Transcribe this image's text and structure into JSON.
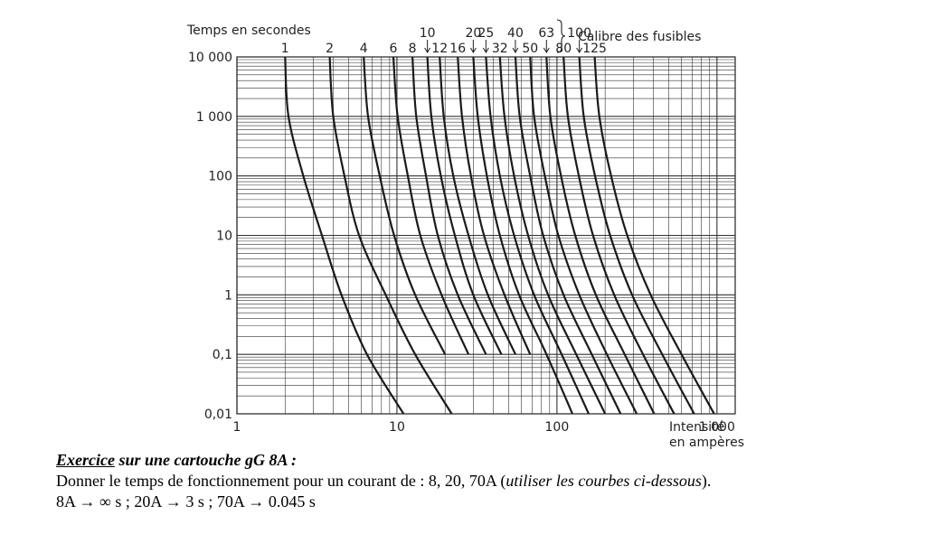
{
  "chart_data": {
    "type": "line",
    "ylabel": "Temps en secondes",
    "xlabel": "Intensité en ampères",
    "xlabel_lines": [
      "Intensité",
      "en ampères"
    ],
    "xscale": "log",
    "yscale": "log",
    "xlim": [
      1,
      1300
    ],
    "ylim": [
      0.01,
      10000
    ],
    "grid": true,
    "x_ticks": [
      {
        "value": 1,
        "label": "1"
      },
      {
        "value": 10,
        "label": "10"
      },
      {
        "value": 100,
        "label": "100"
      },
      {
        "value": 1000,
        "label": "1 000"
      }
    ],
    "y_ticks": [
      {
        "value": 10000,
        "label": "10 000"
      },
      {
        "value": 1000,
        "label": "1 000"
      },
      {
        "value": 100,
        "label": "100"
      },
      {
        "value": 10,
        "label": "10"
      },
      {
        "value": 1,
        "label": "1"
      },
      {
        "value": 0.1,
        "label": "0,1"
      },
      {
        "value": 0.01,
        "label": "0,01"
      }
    ],
    "legend_title": "Calibre des fusibles",
    "fuse_labels": [
      {
        "rating": 1,
        "row": "bottom",
        "label": "1"
      },
      {
        "rating": 2,
        "row": "bottom",
        "label": "2"
      },
      {
        "rating": 4,
        "row": "bottom",
        "label": "4"
      },
      {
        "rating": 6,
        "row": "bottom",
        "label": "6"
      },
      {
        "rating": 8,
        "row": "bottom",
        "label": "8"
      },
      {
        "rating": 10,
        "row": "top",
        "label": "10"
      },
      {
        "rating": 12,
        "row": "bottom",
        "label": "12"
      },
      {
        "rating": 16,
        "row": "bottom",
        "label": "16"
      },
      {
        "rating": 20,
        "row": "top",
        "label": "20"
      },
      {
        "rating": 25,
        "row": "top",
        "label": "25"
      },
      {
        "rating": 32,
        "row": "bottom",
        "label": "32"
      },
      {
        "rating": 40,
        "row": "top",
        "label": "40"
      },
      {
        "rating": 50,
        "row": "bottom",
        "label": "50"
      },
      {
        "rating": 63,
        "row": "top",
        "label": "63"
      },
      {
        "rating": 80,
        "row": "bottom",
        "label": "80"
      },
      {
        "rating": 100,
        "row": "top",
        "label": "100"
      },
      {
        "rating": 125,
        "row": "bottom",
        "label": "125"
      }
    ],
    "series": [
      {
        "rating": 1,
        "points": [
          [
            2.0,
            10000
          ],
          [
            2.1,
            1000
          ],
          [
            2.6,
            100
          ],
          [
            3.4,
            10
          ],
          [
            4.5,
            1
          ],
          [
            6.5,
            0.1
          ],
          [
            11,
            0.01
          ]
        ]
      },
      {
        "rating": 2,
        "points": [
          [
            3.8,
            10000
          ],
          [
            4.0,
            1000
          ],
          [
            4.7,
            100
          ],
          [
            5.8,
            10
          ],
          [
            8.5,
            1
          ],
          [
            13,
            0.1
          ],
          [
            22,
            0.01
          ]
        ]
      },
      {
        "rating": 4,
        "points": [
          [
            6.2,
            10000
          ],
          [
            6.6,
            1000
          ],
          [
            7.8,
            100
          ],
          [
            9.6,
            10
          ],
          [
            13,
            1
          ],
          [
            20,
            0.1
          ]
        ]
      },
      {
        "rating": 6,
        "points": [
          [
            9.5,
            10000
          ],
          [
            10.1,
            1000
          ],
          [
            11.7,
            100
          ],
          [
            14,
            10
          ],
          [
            19,
            1
          ],
          [
            28,
            0.1
          ]
        ]
      },
      {
        "rating": 8,
        "points": [
          [
            12.5,
            10000
          ],
          [
            13.2,
            1000
          ],
          [
            15.2,
            100
          ],
          [
            18,
            10
          ],
          [
            24,
            1
          ],
          [
            36,
            0.1
          ]
        ]
      },
      {
        "rating": 10,
        "points": [
          [
            15.5,
            10000
          ],
          [
            16.4,
            1000
          ],
          [
            18.8,
            100
          ],
          [
            23,
            10
          ],
          [
            30,
            1
          ],
          [
            45,
            0.1
          ]
        ]
      },
      {
        "rating": 12,
        "points": [
          [
            18.5,
            10000
          ],
          [
            19.6,
            1000
          ],
          [
            22.5,
            100
          ],
          [
            28,
            10
          ],
          [
            37,
            1
          ],
          [
            55,
            0.1
          ]
        ]
      },
      {
        "rating": 16,
        "points": [
          [
            24,
            10000
          ],
          [
            25.5,
            1000
          ],
          [
            29,
            100
          ],
          [
            35,
            10
          ],
          [
            47,
            1
          ],
          [
            68,
            0.1
          ]
        ]
      },
      {
        "rating": 20,
        "points": [
          [
            30,
            10000
          ],
          [
            32,
            1000
          ],
          [
            36.5,
            100
          ],
          [
            44,
            10
          ],
          [
            58,
            1
          ],
          [
            86,
            0.1
          ],
          [
            125,
            0.01
          ]
        ]
      },
      {
        "rating": 25,
        "points": [
          [
            36,
            10000
          ],
          [
            38.5,
            1000
          ],
          [
            44,
            100
          ],
          [
            54,
            10
          ],
          [
            72,
            1
          ],
          [
            107,
            0.1
          ],
          [
            158,
            0.01
          ]
        ]
      },
      {
        "rating": 32,
        "points": [
          [
            44,
            10000
          ],
          [
            47,
            1000
          ],
          [
            54,
            100
          ],
          [
            66,
            10
          ],
          [
            88,
            1
          ],
          [
            132,
            0.1
          ],
          [
            200,
            0.01
          ]
        ]
      },
      {
        "rating": 40,
        "points": [
          [
            55,
            10000
          ],
          [
            58.5,
            1000
          ],
          [
            68,
            100
          ],
          [
            82,
            10
          ],
          [
            110,
            1
          ],
          [
            165,
            0.1
          ],
          [
            250,
            0.01
          ]
        ]
      },
      {
        "rating": 50,
        "points": [
          [
            68,
            10000
          ],
          [
            72,
            1000
          ],
          [
            84,
            100
          ],
          [
            102,
            10
          ],
          [
            138,
            1
          ],
          [
            205,
            0.1
          ],
          [
            315,
            0.01
          ]
        ]
      },
      {
        "rating": 63,
        "points": [
          [
            86,
            10000
          ],
          [
            91,
            1000
          ],
          [
            106,
            100
          ],
          [
            130,
            10
          ],
          [
            175,
            1
          ],
          [
            265,
            0.1
          ],
          [
            405,
            0.01
          ]
        ]
      },
      {
        "rating": 80,
        "points": [
          [
            110,
            10000
          ],
          [
            117,
            1000
          ],
          [
            137,
            100
          ],
          [
            168,
            10
          ],
          [
            228,
            1
          ],
          [
            345,
            0.1
          ],
          [
            540,
            0.01
          ]
        ]
      },
      {
        "rating": 100,
        "points": [
          [
            138,
            10000
          ],
          [
            147,
            1000
          ],
          [
            173,
            100
          ],
          [
            215,
            10
          ],
          [
            295,
            1
          ],
          [
            455,
            0.1
          ],
          [
            720,
            0.01
          ]
        ]
      },
      {
        "rating": 125,
        "points": [
          [
            172,
            10000
          ],
          [
            184,
            1000
          ],
          [
            218,
            100
          ],
          [
            275,
            10
          ],
          [
            385,
            1
          ],
          [
            600,
            0.1
          ],
          [
            960,
            0.01
          ]
        ]
      }
    ]
  },
  "exercise": {
    "title": "Exercice",
    "title_rest": " sur une cartouche gG 8A :",
    "question": "Donner le temps de fonctionnement pour un courant de : 8, 20, 70A  (",
    "question_hint": "utiliser les courbes ci-dessous",
    "question_end": ").",
    "answer": "8A → ∞ s ;   20A → 3 s ;    70A → 0.045 s"
  }
}
